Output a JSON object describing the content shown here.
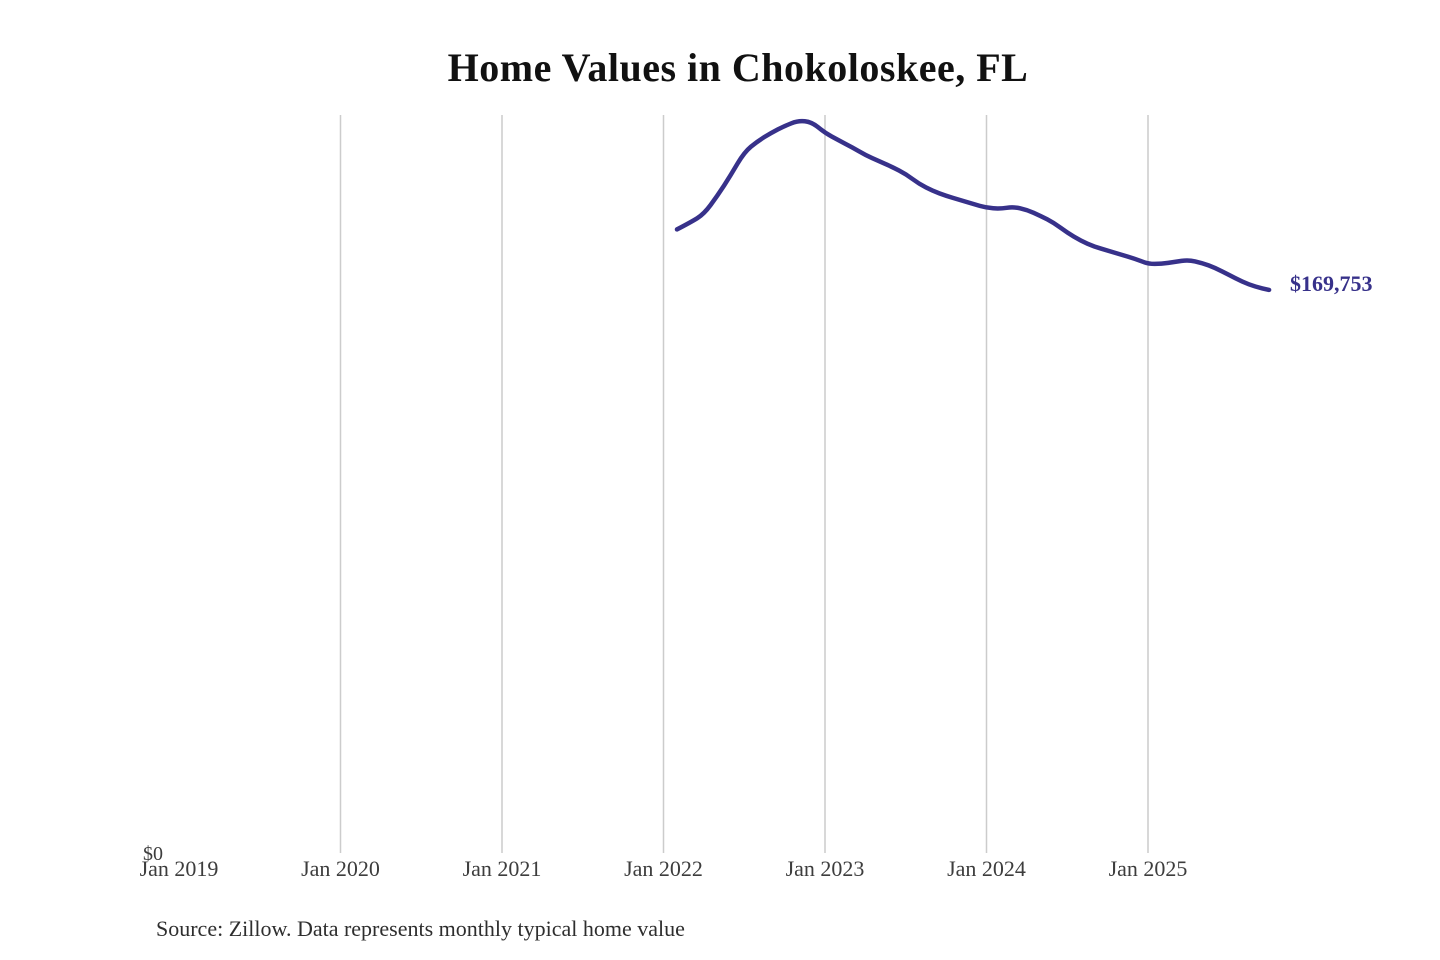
{
  "title": "Home Values in Chokoloskee, FL",
  "source_note": "Source: Zillow. Data represents monthly typical home value",
  "y_axis": {
    "zero_label": "$0"
  },
  "x_axis": {
    "ticks": [
      {
        "label": "Jan 2019",
        "year": 2019
      },
      {
        "label": "Jan 2020",
        "year": 2020
      },
      {
        "label": "Jan 2021",
        "year": 2021
      },
      {
        "label": "Jan 2022",
        "year": 2022
      },
      {
        "label": "Jan 2023",
        "year": 2023
      },
      {
        "label": "Jan 2024",
        "year": 2024
      },
      {
        "label": "Jan 2025",
        "year": 2025
      }
    ]
  },
  "annotation": {
    "latest_value_label": "$169,753"
  },
  "colors": {
    "line": "#37318a",
    "annotation_text": "#37318a",
    "gridline": "#cccccc",
    "title_text": "#111111",
    "axis_text": "#3d3d3d",
    "source_text": "#2e2e2e"
  },
  "chart_data": {
    "type": "line",
    "title": "Home Values in Chokoloskee, FL",
    "xlabel": "",
    "ylabel": "",
    "ylim": [
      0,
      230000
    ],
    "grid": "vertical-only",
    "legend": "none",
    "gridline_years": [
      2020,
      2021,
      2022,
      2023,
      2024,
      2025
    ],
    "x": [
      "2022-02",
      "2022-03",
      "2022-04",
      "2022-05",
      "2022-06",
      "2022-07",
      "2022-08",
      "2022-09",
      "2022-10",
      "2022-11",
      "2022-12",
      "2023-01",
      "2023-02",
      "2023-03",
      "2023-04",
      "2023-05",
      "2023-06",
      "2023-07",
      "2023-08",
      "2023-09",
      "2023-10",
      "2023-11",
      "2023-12",
      "2024-01",
      "2024-02",
      "2024-03",
      "2024-04",
      "2024-05",
      "2024-06",
      "2024-07",
      "2024-08",
      "2024-09",
      "2024-10",
      "2024-11",
      "2024-12",
      "2025-01",
      "2025-02",
      "2025-03",
      "2025-04",
      "2025-05",
      "2025-06",
      "2025-07",
      "2025-08",
      "2025-09",
      "2025-10"
    ],
    "values": [
      188000,
      190100,
      192600,
      198100,
      204400,
      211300,
      214600,
      217100,
      219200,
      220800,
      220400,
      217100,
      214900,
      212800,
      210400,
      208600,
      206800,
      204700,
      201700,
      199600,
      198100,
      196900,
      195700,
      194500,
      194200,
      194800,
      193900,
      192100,
      190000,
      187000,
      184600,
      182800,
      181600,
      180400,
      179200,
      177600,
      177600,
      178200,
      178800,
      177900,
      176400,
      174300,
      172200,
      170700,
      169753
    ],
    "latest_value": 169753,
    "latest_value_label": "$169,753"
  }
}
